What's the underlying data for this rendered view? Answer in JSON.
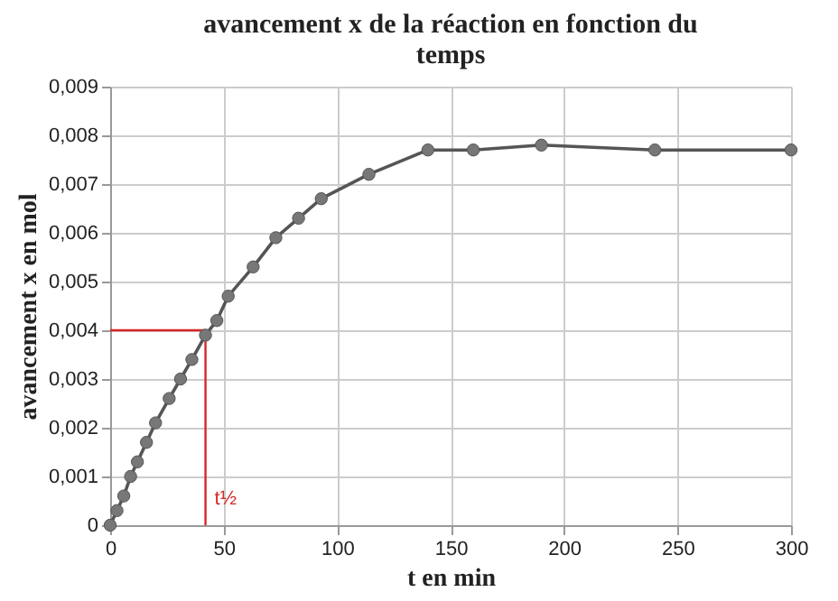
{
  "chart_data": {
    "type": "line",
    "title": "avancement x de la réaction en fonction du temps",
    "xlabel": "t en min",
    "ylabel": "avancement x en mol",
    "x": [
      0,
      3,
      6,
      9,
      12,
      16,
      20,
      26,
      31,
      36,
      42,
      47,
      52,
      63,
      73,
      83,
      93,
      114,
      140,
      160,
      190,
      240,
      300
    ],
    "series": [
      {
        "color": "#555555",
        "values": [
          0,
          0.0003,
          0.0006,
          0.001,
          0.0013,
          0.0017,
          0.0021,
          0.0026,
          0.003,
          0.0034,
          0.0039,
          0.0042,
          0.0047,
          0.0053,
          0.0059,
          0.0063,
          0.0067,
          0.0072,
          0.0077,
          0.0077,
          0.0078,
          0.0077,
          0.0077
        ]
      }
    ],
    "marker": "circle",
    "grid": true,
    "xlim": [
      0,
      300
    ],
    "xticks": [
      0,
      50,
      100,
      150,
      200,
      250,
      300
    ],
    "ylim": [
      0,
      0.009
    ],
    "yticks": [
      0,
      {
        "value": 0.001,
        "label": "0,001"
      },
      {
        "value": 0.002,
        "label": "0,002"
      },
      {
        "value": 0.003,
        "label": "0,003"
      },
      {
        "value": 0.004,
        "label": "0,004"
      },
      {
        "value": 0.005,
        "label": "0,005"
      },
      {
        "value": 0.006,
        "label": "0,006"
      },
      {
        "value": 0.007,
        "label": "0,007"
      },
      {
        "value": 0.008,
        "label": "0,008"
      },
      {
        "value": 0.009,
        "label": "0,009"
      }
    ],
    "ref_lines": [
      {
        "axis": "y",
        "value": 0.004,
        "color": "#d62728"
      },
      {
        "axis": "x",
        "value": 42,
        "label": "t½",
        "color": "#d62728"
      }
    ]
  }
}
